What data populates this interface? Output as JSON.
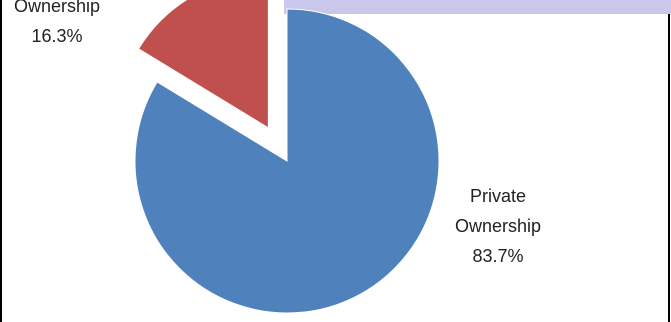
{
  "chart_data": {
    "type": "pie",
    "title": "",
    "labels": [
      "Public Ownership",
      "Private Ownership"
    ],
    "values": [
      16.3,
      83.7
    ],
    "value_labels": [
      "16.3%",
      "83.7%"
    ],
    "exploded": [
      "Public Ownership"
    ],
    "colors": [
      "#c0504d",
      "#4f81bd"
    ],
    "start": "12 o'clock",
    "direction": "clockwise",
    "legend": "none (data labels beside slices)"
  },
  "labels": {
    "public_name_visible": "Ownership",
    "public_value": "16.3%",
    "private_name_line1": "Private",
    "private_name_line2": "Ownership",
    "private_value": "83.7%"
  }
}
